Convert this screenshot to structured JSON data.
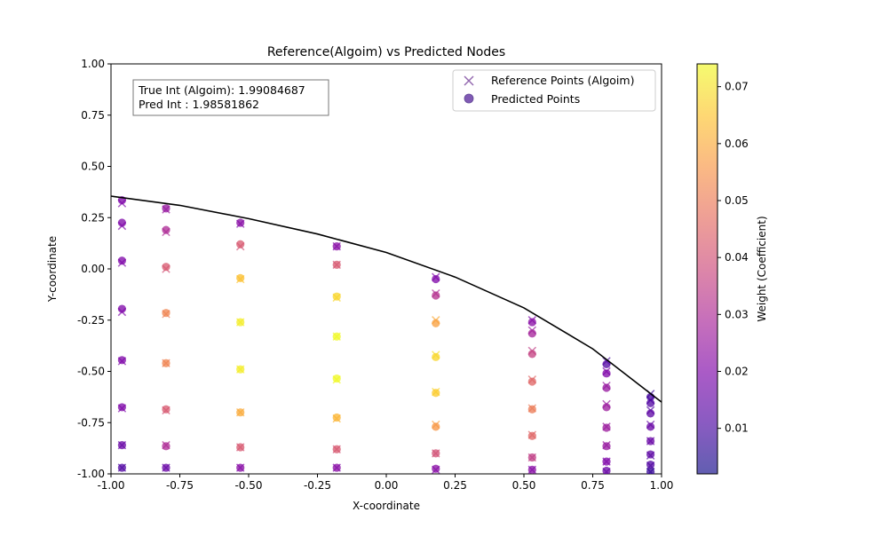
{
  "chart_data": {
    "type": "scatter",
    "title": "Reference(Algoim) vs Predicted Nodes",
    "xlabel": "X-coordinate",
    "ylabel": "Y-coordinate",
    "xlim": [
      -1.0,
      1.0
    ],
    "ylim": [
      -1.0,
      1.0
    ],
    "x_ticks": [
      "-1.00",
      "-0.75",
      "-0.50",
      "-0.25",
      "0.00",
      "0.25",
      "0.50",
      "0.75",
      "1.00"
    ],
    "y_ticks": [
      "-1.00",
      "-0.75",
      "-0.50",
      "-0.25",
      "0.00",
      "0.25",
      "0.50",
      "0.75",
      "1.00"
    ],
    "grid": false,
    "legend_position": "top-right",
    "legend": [
      "Reference Points (Algoim)",
      "Predicted Points"
    ],
    "annotation": {
      "line1": "True Int (Algoim): 1.99084687",
      "line2": "Pred Int : 1.98581862"
    },
    "colorbar": {
      "label": "Weight (Coefficient)",
      "colormap": "plasma",
      "range": [
        0.002,
        0.074
      ],
      "ticks": [
        "0.01",
        "0.02",
        "0.03",
        "0.04",
        "0.05",
        "0.06",
        "0.07"
      ]
    },
    "boundary_curve": {
      "x": [
        -1.0,
        -0.75,
        -0.5,
        -0.25,
        0.0,
        0.25,
        0.5,
        0.75,
        1.0
      ],
      "y": [
        0.355,
        0.31,
        0.245,
        0.17,
        0.08,
        -0.04,
        -0.19,
        -0.39,
        -0.65
      ]
    },
    "reference_points": [
      {
        "x": -0.96,
        "y": 0.32,
        "w": 0.02
      },
      {
        "x": -0.96,
        "y": 0.21,
        "w": 0.02
      },
      {
        "x": -0.96,
        "y": 0.03,
        "w": 0.02
      },
      {
        "x": -0.96,
        "y": -0.21,
        "w": 0.02
      },
      {
        "x": -0.96,
        "y": -0.45,
        "w": 0.02
      },
      {
        "x": -0.96,
        "y": -0.68,
        "w": 0.02
      },
      {
        "x": -0.96,
        "y": -0.86,
        "w": 0.015
      },
      {
        "x": -0.96,
        "y": -0.97,
        "w": 0.01
      },
      {
        "x": -0.8,
        "y": 0.29,
        "w": 0.025
      },
      {
        "x": -0.8,
        "y": 0.18,
        "w": 0.03
      },
      {
        "x": -0.8,
        "y": 0.0,
        "w": 0.04
      },
      {
        "x": -0.8,
        "y": -0.22,
        "w": 0.05
      },
      {
        "x": -0.8,
        "y": -0.46,
        "w": 0.05
      },
      {
        "x": -0.8,
        "y": -0.69,
        "w": 0.04
      },
      {
        "x": -0.8,
        "y": -0.86,
        "w": 0.03
      },
      {
        "x": -0.8,
        "y": -0.97,
        "w": 0.015
      },
      {
        "x": -0.53,
        "y": 0.22,
        "w": 0.02
      },
      {
        "x": -0.53,
        "y": 0.11,
        "w": 0.04
      },
      {
        "x": -0.53,
        "y": -0.05,
        "w": 0.065
      },
      {
        "x": -0.53,
        "y": -0.26,
        "w": 0.072
      },
      {
        "x": -0.53,
        "y": -0.49,
        "w": 0.072
      },
      {
        "x": -0.53,
        "y": -0.7,
        "w": 0.06
      },
      {
        "x": -0.53,
        "y": -0.87,
        "w": 0.04
      },
      {
        "x": -0.53,
        "y": -0.97,
        "w": 0.02
      },
      {
        "x": -0.18,
        "y": 0.11,
        "w": 0.02
      },
      {
        "x": -0.18,
        "y": 0.02,
        "w": 0.04
      },
      {
        "x": -0.18,
        "y": -0.14,
        "w": 0.068
      },
      {
        "x": -0.18,
        "y": -0.33,
        "w": 0.074
      },
      {
        "x": -0.18,
        "y": -0.54,
        "w": 0.074
      },
      {
        "x": -0.18,
        "y": -0.73,
        "w": 0.062
      },
      {
        "x": -0.18,
        "y": -0.88,
        "w": 0.04
      },
      {
        "x": -0.18,
        "y": -0.97,
        "w": 0.02
      },
      {
        "x": 0.18,
        "y": -0.04,
        "w": 0.02
      },
      {
        "x": 0.18,
        "y": -0.12,
        "w": 0.03
      },
      {
        "x": 0.18,
        "y": -0.25,
        "w": 0.06
      },
      {
        "x": 0.18,
        "y": -0.42,
        "w": 0.07
      },
      {
        "x": 0.18,
        "y": -0.6,
        "w": 0.068
      },
      {
        "x": 0.18,
        "y": -0.76,
        "w": 0.058
      },
      {
        "x": 0.18,
        "y": -0.9,
        "w": 0.04
      },
      {
        "x": 0.18,
        "y": -0.98,
        "w": 0.02
      },
      {
        "x": 0.53,
        "y": -0.25,
        "w": 0.02
      },
      {
        "x": 0.53,
        "y": -0.3,
        "w": 0.025
      },
      {
        "x": 0.53,
        "y": -0.4,
        "w": 0.035
      },
      {
        "x": 0.53,
        "y": -0.54,
        "w": 0.045
      },
      {
        "x": 0.53,
        "y": -0.68,
        "w": 0.05
      },
      {
        "x": 0.53,
        "y": -0.81,
        "w": 0.045
      },
      {
        "x": 0.53,
        "y": -0.92,
        "w": 0.035
      },
      {
        "x": 0.53,
        "y": -0.98,
        "w": 0.02
      },
      {
        "x": 0.8,
        "y": -0.45,
        "w": 0.01
      },
      {
        "x": 0.8,
        "y": -0.5,
        "w": 0.02
      },
      {
        "x": 0.8,
        "y": -0.57,
        "w": 0.025
      },
      {
        "x": 0.8,
        "y": -0.66,
        "w": 0.025
      },
      {
        "x": 0.8,
        "y": -0.77,
        "w": 0.025
      },
      {
        "x": 0.8,
        "y": -0.86,
        "w": 0.025
      },
      {
        "x": 0.8,
        "y": -0.94,
        "w": 0.02
      },
      {
        "x": 0.8,
        "y": -0.99,
        "w": 0.015
      },
      {
        "x": 0.96,
        "y": -0.61,
        "w": 0.008
      },
      {
        "x": 0.96,
        "y": -0.64,
        "w": 0.01
      },
      {
        "x": 0.96,
        "y": -0.69,
        "w": 0.012
      },
      {
        "x": 0.96,
        "y": -0.76,
        "w": 0.015
      },
      {
        "x": 0.96,
        "y": -0.84,
        "w": 0.015
      },
      {
        "x": 0.96,
        "y": -0.91,
        "w": 0.012
      },
      {
        "x": 0.96,
        "y": -0.96,
        "w": 0.01
      },
      {
        "x": 0.96,
        "y": -0.99,
        "w": 0.005
      }
    ],
    "predicted_points": [
      {
        "x": -0.96,
        "y": 0.335,
        "w": 0.02
      },
      {
        "x": -0.96,
        "y": 0.225,
        "w": 0.02
      },
      {
        "x": -0.96,
        "y": 0.04,
        "w": 0.02
      },
      {
        "x": -0.96,
        "y": -0.195,
        "w": 0.02
      },
      {
        "x": -0.96,
        "y": -0.445,
        "w": 0.02
      },
      {
        "x": -0.96,
        "y": -0.675,
        "w": 0.02
      },
      {
        "x": -0.96,
        "y": -0.86,
        "w": 0.016
      },
      {
        "x": -0.96,
        "y": -0.97,
        "w": 0.012
      },
      {
        "x": -0.8,
        "y": 0.295,
        "w": 0.025
      },
      {
        "x": -0.8,
        "y": 0.19,
        "w": 0.03
      },
      {
        "x": -0.8,
        "y": 0.01,
        "w": 0.042
      },
      {
        "x": -0.8,
        "y": -0.215,
        "w": 0.052
      },
      {
        "x": -0.8,
        "y": -0.46,
        "w": 0.052
      },
      {
        "x": -0.8,
        "y": -0.685,
        "w": 0.042
      },
      {
        "x": -0.8,
        "y": -0.865,
        "w": 0.03
      },
      {
        "x": -0.8,
        "y": -0.97,
        "w": 0.016
      },
      {
        "x": -0.53,
        "y": 0.225,
        "w": 0.022
      },
      {
        "x": -0.53,
        "y": 0.12,
        "w": 0.042
      },
      {
        "x": -0.53,
        "y": -0.045,
        "w": 0.064
      },
      {
        "x": -0.53,
        "y": -0.26,
        "w": 0.072
      },
      {
        "x": -0.53,
        "y": -0.49,
        "w": 0.072
      },
      {
        "x": -0.53,
        "y": -0.7,
        "w": 0.06
      },
      {
        "x": -0.53,
        "y": -0.87,
        "w": 0.042
      },
      {
        "x": -0.53,
        "y": -0.97,
        "w": 0.022
      },
      {
        "x": -0.18,
        "y": 0.11,
        "w": 0.022
      },
      {
        "x": -0.18,
        "y": 0.02,
        "w": 0.042
      },
      {
        "x": -0.18,
        "y": -0.135,
        "w": 0.068
      },
      {
        "x": -0.18,
        "y": -0.33,
        "w": 0.074
      },
      {
        "x": -0.18,
        "y": -0.535,
        "w": 0.074
      },
      {
        "x": -0.18,
        "y": -0.725,
        "w": 0.062
      },
      {
        "x": -0.18,
        "y": -0.88,
        "w": 0.042
      },
      {
        "x": -0.18,
        "y": -0.97,
        "w": 0.022
      },
      {
        "x": 0.18,
        "y": -0.05,
        "w": 0.02
      },
      {
        "x": 0.18,
        "y": -0.13,
        "w": 0.032
      },
      {
        "x": 0.18,
        "y": -0.265,
        "w": 0.058
      },
      {
        "x": 0.18,
        "y": -0.43,
        "w": 0.068
      },
      {
        "x": 0.18,
        "y": -0.605,
        "w": 0.066
      },
      {
        "x": 0.18,
        "y": -0.77,
        "w": 0.056
      },
      {
        "x": 0.18,
        "y": -0.9,
        "w": 0.04
      },
      {
        "x": 0.18,
        "y": -0.975,
        "w": 0.022
      },
      {
        "x": 0.53,
        "y": -0.26,
        "w": 0.022
      },
      {
        "x": 0.53,
        "y": -0.315,
        "w": 0.028
      },
      {
        "x": 0.53,
        "y": -0.415,
        "w": 0.036
      },
      {
        "x": 0.53,
        "y": -0.55,
        "w": 0.045
      },
      {
        "x": 0.53,
        "y": -0.685,
        "w": 0.05
      },
      {
        "x": 0.53,
        "y": -0.815,
        "w": 0.045
      },
      {
        "x": 0.53,
        "y": -0.92,
        "w": 0.035
      },
      {
        "x": 0.53,
        "y": -0.98,
        "w": 0.022
      },
      {
        "x": 0.8,
        "y": -0.465,
        "w": 0.012
      },
      {
        "x": 0.8,
        "y": -0.51,
        "w": 0.02
      },
      {
        "x": 0.8,
        "y": -0.58,
        "w": 0.025
      },
      {
        "x": 0.8,
        "y": -0.675,
        "w": 0.026
      },
      {
        "x": 0.8,
        "y": -0.775,
        "w": 0.026
      },
      {
        "x": 0.8,
        "y": -0.865,
        "w": 0.025
      },
      {
        "x": 0.8,
        "y": -0.94,
        "w": 0.02
      },
      {
        "x": 0.8,
        "y": -0.985,
        "w": 0.016
      },
      {
        "x": 0.96,
        "y": -0.625,
        "w": 0.01
      },
      {
        "x": 0.96,
        "y": -0.655,
        "w": 0.012
      },
      {
        "x": 0.96,
        "y": -0.705,
        "w": 0.014
      },
      {
        "x": 0.96,
        "y": -0.77,
        "w": 0.016
      },
      {
        "x": 0.96,
        "y": -0.84,
        "w": 0.016
      },
      {
        "x": 0.96,
        "y": -0.905,
        "w": 0.014
      },
      {
        "x": 0.96,
        "y": -0.955,
        "w": 0.012
      },
      {
        "x": 0.96,
        "y": -0.99,
        "w": 0.008
      }
    ]
  }
}
